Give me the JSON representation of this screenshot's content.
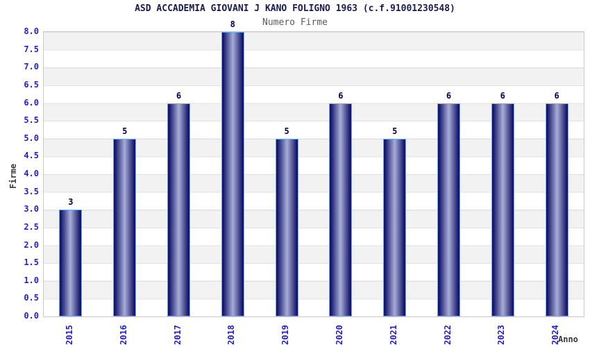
{
  "chart_data": {
    "type": "bar",
    "title": "ASD ACCADEMIA GIOVANI J KANO FOLIGNO 1963 (c.f.91001230548)",
    "subtitle": "Numero Firme",
    "xlabel": "Anno",
    "ylabel": "Firme",
    "categories": [
      "2015",
      "2016",
      "2017",
      "2018",
      "2019",
      "2020",
      "2021",
      "2022",
      "2023",
      "2024"
    ],
    "values": [
      3,
      5,
      6,
      8,
      5,
      6,
      5,
      6,
      6,
      6
    ],
    "ylim": [
      0,
      8
    ],
    "ytick_step": 0.5,
    "yticks": [
      "0.0",
      "0.5",
      "1.0",
      "1.5",
      "2.0",
      "2.5",
      "3.0",
      "3.5",
      "4.0",
      "4.5",
      "5.0",
      "5.5",
      "6.0",
      "6.5",
      "7.0",
      "7.5",
      "8.0"
    ],
    "grid": "horizontal-bands-alternating",
    "legend": "none",
    "bar_value_labels_shown": true,
    "colors": {
      "title_navy": "#1a1a52",
      "subtitle_gray": "#5a5a5a",
      "tick_blue": "#2121cc",
      "value_navy": "#00004d",
      "axis_title_dark": "#3a3a3a",
      "bar_dark": "#15156b",
      "bar_light": "#a7add5",
      "bar_outline": "#6fa9f2",
      "band_gray": "#f2f2f2",
      "grid_line": "#e0e0e0",
      "plot_border": "#c9c9c9"
    }
  }
}
